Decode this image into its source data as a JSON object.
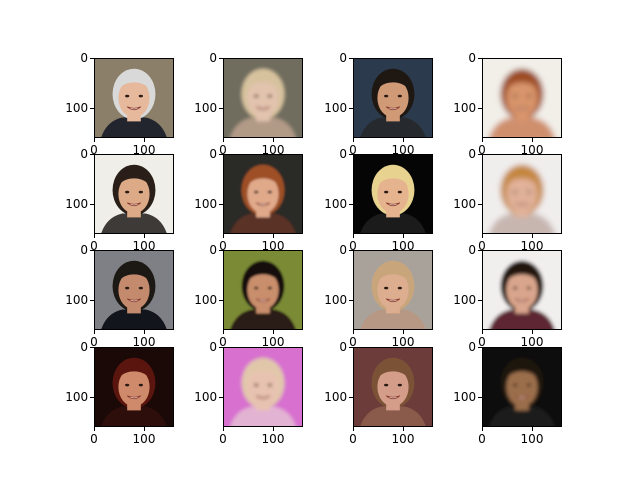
{
  "figure": {
    "background": "#ffffff",
    "image_size": 160,
    "x_tick_labels": [
      "0",
      "100"
    ],
    "y_tick_labels": [
      "0",
      "100"
    ]
  },
  "panels": [
    {
      "description": "older man with white hair and glasses, dark suit",
      "bg": "#8b7f6a",
      "skin": "#e6b89c",
      "hair": "#d9d9d9",
      "cloth": "#22252e",
      "blur": 0
    },
    {
      "description": "blurry blonde woman",
      "bg": "#6f6d5e",
      "skin": "#e2c3ae",
      "hair": "#d7c29e",
      "cloth": "#b19a86",
      "blur": 2
    },
    {
      "description": "man with dark hair, dark jacket",
      "bg": "#2b3a4c",
      "skin": "#d19a77",
      "hair": "#1e1712",
      "cloth": "#262a2e",
      "blur": 0
    },
    {
      "description": "blurry woman with reddish hair",
      "bg": "#f2efe9",
      "skin": "#d9956c",
      "hair": "#9c4b24",
      "cloth": "#cf8f6d",
      "blur": 3
    },
    {
      "description": "smiling young man with dark hair",
      "bg": "#efeee9",
      "skin": "#dcaa86",
      "hair": "#2a1f18",
      "cloth": "#3e3a37",
      "blur": 0
    },
    {
      "description": "woman with auburn hair, blurry",
      "bg": "#2c2b25",
      "skin": "#e0a98a",
      "hair": "#9e4f27",
      "cloth": "#5a3328",
      "blur": 1
    },
    {
      "description": "man with blond hair smiling",
      "bg": "#050505",
      "skin": "#e6b38f",
      "hair": "#e8d28f",
      "cloth": "#1b1b1b",
      "blur": 0
    },
    {
      "description": "blurry woman with light hair",
      "bg": "#f0eded",
      "skin": "#e2b29a",
      "hair": "#c4863d",
      "cloth": "#c7b6b0",
      "blur": 3
    },
    {
      "description": "smiling older man with dark hair in suit",
      "bg": "#7e8085",
      "skin": "#c48a6d",
      "hair": "#1c1814",
      "cloth": "#12151b",
      "blur": 0
    },
    {
      "description": "woman with long dark hair",
      "bg": "#7a8a35",
      "skin": "#c98e6c",
      "hair": "#140c08",
      "cloth": "#2b1c16",
      "blur": 1
    },
    {
      "description": "smiling woman with long blonde hair",
      "bg": "#a9a29b",
      "skin": "#dcae8f",
      "hair": "#c9a57b",
      "cloth": "#b79884",
      "blur": 0
    },
    {
      "description": "woman with dark hair, blurry",
      "bg": "#f1eeee",
      "skin": "#d9a58c",
      "hair": "#24120b",
      "cloth": "#5d2630",
      "blur": 2
    },
    {
      "description": "young woman with red hair in dark scene",
      "bg": "#1a0907",
      "skin": "#cf8a6b",
      "hair": "#5a150e",
      "cloth": "#2d0e0b",
      "blur": 0
    },
    {
      "description": "blurry blonde woman with pink background",
      "bg": "#d76fcf",
      "skin": "#e8c2b0",
      "hair": "#e1c7aa",
      "cloth": "#e3b3d3",
      "blur": 2
    },
    {
      "description": "young person with brown hair resting chin on hand",
      "bg": "#6c3c3b",
      "skin": "#d39d8a",
      "hair": "#7b5236",
      "cloth": "#8a5a4b",
      "blur": 0
    },
    {
      "description": "blurry older man with dark hair and suit",
      "bg": "#0e0c0b",
      "skin": "#9b6e4c",
      "hair": "#1d140e",
      "cloth": "#1b1b1f",
      "blur": 2
    }
  ]
}
